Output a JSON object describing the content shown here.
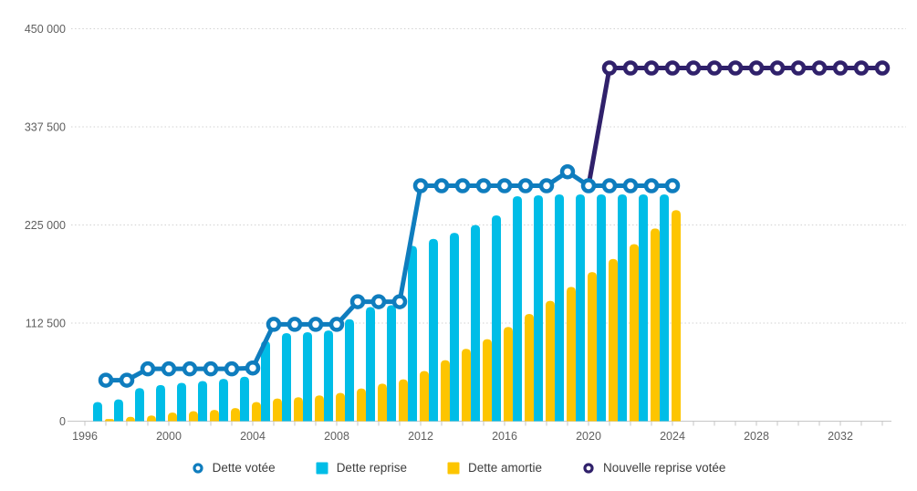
{
  "chart_data": {
    "type": "bar",
    "subtype": "combo-bar-line",
    "title": "",
    "xlabel": "",
    "ylabel": "",
    "grid": true,
    "legend_position": "bottom",
    "y_axis": {
      "min": 0,
      "max": 450000,
      "tick_values": [
        0,
        112500,
        225000,
        337500,
        450000
      ],
      "tick_labels": [
        "0",
        "112 500",
        "225 000",
        "337 500",
        "450 000"
      ]
    },
    "x_axis": {
      "range_start": 1996,
      "range_end": 2034,
      "tick_every_year": true,
      "label_values": [
        1996,
        2000,
        2004,
        2008,
        2012,
        2016,
        2020,
        2024,
        2028,
        2032
      ],
      "labels": [
        "1996",
        "2000",
        "2004",
        "2008",
        "2012",
        "2016",
        "2020",
        "2024",
        "2028",
        "2032"
      ]
    },
    "series": [
      {
        "name": "Dette reprise",
        "slug": "dette-reprise",
        "type": "bar",
        "color": "#00bde7",
        "x": [
          1997,
          1998,
          1999,
          2000,
          2001,
          2002,
          2003,
          2004,
          2005,
          2006,
          2007,
          2008,
          2009,
          2010,
          2011,
          2012,
          2013,
          2014,
          2015,
          2016,
          2017,
          2018,
          2019,
          2020,
          2021,
          2022,
          2023,
          2024
        ],
        "values": [
          22000,
          25000,
          38000,
          41500,
          44000,
          46000,
          48500,
          51000,
          92000,
          101000,
          102000,
          104000,
          117000,
          131000,
          133000,
          201000,
          209000,
          216000,
          225000,
          236000,
          258000,
          259000,
          260000,
          260000,
          260000,
          260000,
          260000,
          260000
        ]
      },
      {
        "name": "Dette amortie",
        "slug": "dette-amortie",
        "type": "bar",
        "color": "#fdc500",
        "x": [
          1997,
          1998,
          1999,
          2000,
          2001,
          2002,
          2003,
          2004,
          2005,
          2006,
          2007,
          2008,
          2009,
          2010,
          2011,
          2012,
          2013,
          2014,
          2015,
          2016,
          2017,
          2018,
          2019,
          2020,
          2021,
          2022,
          2023,
          2024
        ],
        "values": [
          2500,
          5000,
          6500,
          10000,
          11500,
          13000,
          15000,
          22000,
          26000,
          27500,
          29500,
          32500,
          37500,
          43000,
          48000,
          57500,
          70000,
          83000,
          94000,
          108000,
          123000,
          138000,
          154000,
          171000,
          186000,
          203000,
          221000,
          242000
        ]
      },
      {
        "name": "Dette votée",
        "slug": "dette-votee",
        "type": "line",
        "color": "#0f7dbe",
        "x": [
          1997,
          1998,
          1999,
          2000,
          2001,
          2002,
          2003,
          2004,
          2005,
          2006,
          2007,
          2008,
          2009,
          2010,
          2011,
          2012,
          2013,
          2014,
          2015,
          2016,
          2017,
          2018,
          2019,
          2020,
          2021,
          2022,
          2023,
          2024
        ],
        "values": [
          47000,
          47000,
          60000,
          60000,
          60000,
          60000,
          60000,
          61000,
          111000,
          111000,
          111000,
          111000,
          137000,
          137000,
          137000,
          270000,
          270000,
          270000,
          270000,
          270000,
          270000,
          270000,
          286000,
          270000,
          270000,
          270000,
          270000,
          270000
        ]
      },
      {
        "name": "Nouvelle reprise votée",
        "slug": "nouvelle-reprise-votee",
        "type": "line",
        "color": "#30216b",
        "x": [
          2020,
          2021,
          2022,
          2023,
          2024,
          2025,
          2026,
          2027,
          2028,
          2029,
          2030,
          2031,
          2032,
          2033,
          2034
        ],
        "values": [
          270000,
          405000,
          405000,
          405000,
          405000,
          405000,
          405000,
          405000,
          405000,
          405000,
          405000,
          405000,
          405000,
          405000,
          405000
        ]
      }
    ],
    "legend": [
      {
        "label": "Dette votée",
        "slug": "dette-votee",
        "marker": "ring",
        "color": "#0f7dbe"
      },
      {
        "label": "Dette reprise",
        "slug": "dette-reprise",
        "marker": "square",
        "color": "#00bde7"
      },
      {
        "label": "Dette amortie",
        "slug": "dette-amortie",
        "marker": "square",
        "color": "#fdc500"
      },
      {
        "label": "Nouvelle reprise votée",
        "slug": "nouvelle-reprise-votee",
        "marker": "ring",
        "color": "#30216b"
      }
    ],
    "colors": {
      "gridline": "#d2d2d2",
      "axis": "#c6c6c6",
      "axis_text": "#5f5f5f",
      "legend_text": "#3d3d3d",
      "background": "#ffffff"
    }
  }
}
